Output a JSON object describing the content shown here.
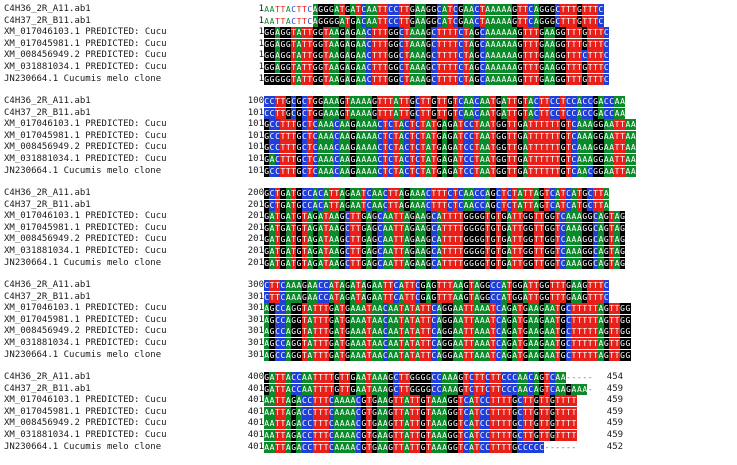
{
  "alignment": {
    "names": [
      "C4H36_2R_A11.ab1",
      "C4H37_2R_B11.ab1",
      "XM_017046103.1 PREDICTED: Cucu",
      "XM_017045981.1 PREDICTED: Cucu",
      "XM_008456949.2 PREDICTED: Cucu",
      "XM_031881034.1 PREDICTED: Cucu",
      "JN230664.1 Cucumis melo clone"
    ],
    "blocks": [
      {
        "positions": [
          "1",
          "1",
          "1",
          "1",
          "1",
          "1",
          "1"
        ],
        "rows": [
          "AATTACTTCAGGGATGATCAATTCCTTGAAGGCATCGAACTAAAAAGTTCAGGGCTTTGTTTC",
          "AATTACTTCAGGGGATGACAATTCCTTGAAGGCATCGAACTAAAAAGTTCAGGGCTTTGTTTC",
          "GGAGGTATTGGTAAGAGAACTTTGGCTAAAGCTTTTCTAGCAAAAAAGTTTGAAGGTTTGTTTC",
          "GGAGGTATTGGTAAGAGAACTTTGGCTAAAGCTTTTCTAGCAAAAAAGTTTGAAGGTTTGTTTC",
          "GGAGGTATTGGTAAGAGAACTTTGGCTAAAGCTTTTCTAGCAAAAAAGTTTGAAGGTTTCTTTC",
          "GGAGGTATTGGTAAGAGAACTTTGGCTAAAGCTTTTCTAGCAAAAAAGTTTGAAGGTTTGTTTC",
          "GGGGGTATTGGTAAGAGAACTTTGGCTAAAGCTTTTCTAGCAAAAAAGTTTGAAGGTTTGTTTC"
        ],
        "ends": []
      },
      {
        "positions": [
          "100",
          "101",
          "101",
          "101",
          "101",
          "101",
          "101"
        ],
        "rows": [
          "CCTTGCGCTGGAAAGTAAAAGTTTATTGCTTGTTGTCAACAATGATTGTACTTCCTCCACCGACCAA",
          "CCTTGCGCTGGAAAGTAAAAGTTTATTGCTTGTTGTCAACAATGATTGTACTTCCTCCACCGACCAA",
          "GCCTTTGCTCAAACAAGAAAACTCTACTCTATGAGATCCTAATGGTTGATTTTTTGTCAAAGGAATTAA",
          "GCCTTTGCTCAAACAAGAAAACTCTACTCTATGAGATCCTAATGGTTGATTTTTTGTCAAAGGAATTAA",
          "GCCTTTGCTCAAACAAGAAAACTCTACTCTATGAGATCCTAATGGTTGATTTTTTGTCAAAGGAATTAA",
          "GACTTTGCTCAAACAAGAAAACTCTACTCTATGAGATCCTAATGGTTGATTTTTTGTCAAAGGAATTAA",
          "GCCTTTGCTCAAACAAGAAAACTCTACTCTATGAGATCCTAATGGTTGATTTTTTGTCAACGGAATTAA"
        ],
        "ends": []
      },
      {
        "positions": [
          "200",
          "201",
          "201",
          "201",
          "201",
          "201",
          "201"
        ],
        "rows": [
          "GCTGATGCCACATTAGAATCAACTTAGAAACTTTCTCAACCAGCTCTATTAGTCATCATGCTTA",
          "GCTGATGCCACATTAGAATCAACTTAGAAACTTTCTCAACCAGCTCTATTAGTCATCATGCTTA",
          "GATGATGTAGATAAGCTTGAGCAATTAGAAGCATTTTGGGGTGTGATTGGTTGGTCAAAGGCAGTAG",
          "GATGATGTAGATAAGCTTGAGCAATTAGAAGCATTTTGGGGTGTGATTGGTTGGTCAAAGGCAGTAG",
          "GATGATGTAGATAAGCTTGAGCAATTAGAAGCATTTTGGGGTGTGATTGGTTGGTCAAAGGCAGTAG",
          "GATGATGTAGATAAGCTTGAGCAATTAGAAGCATTTTGGGGTGTGATTGGTTGGTCAAAGGCAGTAG",
          "GATGATGTAGATAAGCTTGAGCAATTAGAAGCATTTTGGGGTGTGATTGGTTGGTCAAAGGCAGTAG"
        ],
        "ends": []
      },
      {
        "positions": [
          "300",
          "301",
          "301",
          "301",
          "301",
          "301",
          "301"
        ],
        "rows": [
          "CTTCAAAGAACCATAGATAGAATTCATTCGAGTTTAAGTAGGCCATGGATTGGTTTGAAGTTTC",
          "CTTCAAAGAACCATAGATAGAATTCATTCGAGTTTAAGTAGGCCATGGATTGGTTTGAAGTTTC",
          "AGCCAGGTATTTGATGAAATAACAATATATTCAGGAATTAAATCAGATGAAGAATGCTTTTTAGTTGG",
          "AGCCAGGTATTTGATGAAATAACAATATATTCAGGAATTAAATCAGATGAAGAATGCTTTTTAGTTGG",
          "AGCCAGGTATTTGATGAAATAACAATATATTCAGGAATTAAATCAGATGAAGAATGCTTTTTAGTTGG",
          "AGCCAGGTATTTGATGAAATAACAATATATTCAGGAATTAAATCAGATGAAGAATGCTTTTTAGTTGG",
          "AGCCAGGTATTTGATGAAATAACAATATATTCAGGAATTAAATCAGATGAAGAATGCTTTTTAGTTGG"
        ],
        "ends": []
      },
      {
        "positions": [
          "400",
          "401",
          "401",
          "401",
          "401",
          "401",
          "401"
        ],
        "rows": [
          "GATTACCAATTTTGTTGAATAAAGCTTGGGGCCAAAGTCTTCTTCCCAACAGTCAA-----",
          "GATTACCAATTTTGTTGAATAAAGCTTGGGGCCAAAGTCTTCTTCCCAACAGTCAAGAAA-",
          "AATTAGACCTTTCAAAACGTGAAGTTATTGTAAAGGTCATCCTTTTGCTTGTTGTTTT",
          "AATTAGACCTTTCAAAACGTGAAGTTATTGTAAAGGTCATCCTTTTGCTTGTTGTTTT",
          "AATTAGACCTTTCAAAACGTGAAGTTATTGTAAAGGTCATCCTTTTGCTTGTTGTTTT",
          "AATTAGACCTTTCAAAACGTGAAGTTATTGTAAAGGTCATCCTTTTGCTTGTTGTTTT",
          "AATTAGACCTTTCAAAACGTGAAGTTATTGTAAAGGTCATCCTTTTGCCCCC------"
        ],
        "ends": [
          "454",
          "459",
          "459",
          "459",
          "459",
          "459",
          "452"
        ]
      }
    ]
  },
  "colors": {
    "A": "#0b8a2a",
    "T": "#e8201a",
    "G": "#000000",
    "C": "#1f3fd8"
  }
}
